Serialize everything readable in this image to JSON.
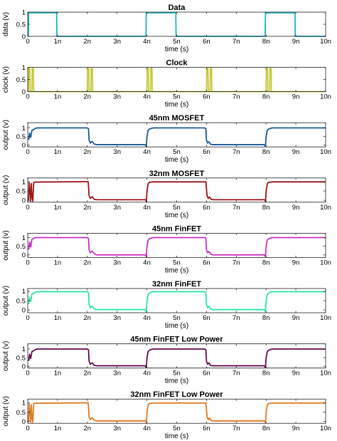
{
  "chart_data": [
    {
      "type": "line",
      "title": "Data",
      "xlabel": "time (s)",
      "ylabel": "data (v)",
      "xlim": [
        0,
        10
      ],
      "ylim": [
        0,
        1
      ],
      "xticks": [
        "0",
        "1n",
        "2n",
        "3n",
        "4n",
        "5n",
        "6n",
        "7n",
        "8n",
        "9n",
        "10n"
      ],
      "yticks": [
        "0",
        "0.5",
        "1"
      ],
      "grid": false,
      "color": "#1fb5c4",
      "series": [
        {
          "x": [
            0,
            0.02,
            0.03,
            0.97,
            0.98,
            3.97,
            3.98,
            4.97,
            4.98,
            7.97,
            7.98,
            8.97,
            8.98,
            10
          ],
          "y": [
            0,
            0,
            0.97,
            0.97,
            0,
            0,
            0.97,
            0.97,
            0,
            0,
            0.97,
            0.97,
            0,
            0
          ]
        }
      ]
    },
    {
      "type": "line",
      "title": "Clock",
      "xlabel": "time (s)",
      "ylabel": "clock (v)",
      "xlim": [
        0,
        10
      ],
      "ylim": [
        0,
        1
      ],
      "xticks": [
        "0",
        "1n",
        "2n",
        "3n",
        "4n",
        "5n",
        "6n",
        "7n",
        "8n",
        "9n",
        "10n"
      ],
      "yticks": [
        "0",
        "0.5",
        "1"
      ],
      "grid": false,
      "color": "#c8c83a",
      "series": [
        {
          "x": [
            0,
            0.02,
            0.03,
            0.07,
            0.08,
            0.14,
            0.15,
            0.19,
            0.2,
            2.0,
            2.01,
            2.05,
            2.06,
            2.12,
            2.13,
            2.17,
            2.18,
            4.0,
            4.01,
            4.05,
            4.06,
            4.12,
            4.13,
            4.17,
            4.18,
            6.0,
            6.01,
            6.05,
            6.06,
            6.12,
            6.13,
            6.17,
            6.18,
            8.0,
            8.01,
            8.05,
            8.06,
            8.12,
            8.13,
            8.17,
            8.18,
            10
          ],
          "y": [
            0,
            0,
            0.97,
            0.97,
            0,
            0,
            0.97,
            0.97,
            0,
            0,
            0.97,
            0.97,
            0,
            0,
            0.97,
            0.97,
            0,
            0,
            0.97,
            0.97,
            0,
            0,
            0.97,
            0.97,
            0,
            0,
            0.97,
            0.97,
            0,
            0,
            0.97,
            0.97,
            0,
            0,
            0.97,
            0.97,
            0,
            0,
            0.97,
            0.97,
            0,
            0
          ]
        }
      ]
    },
    {
      "type": "line",
      "title": "45nm MOSFET",
      "xlabel": "time (s)",
      "ylabel": "output (v)",
      "xlim": [
        0,
        10
      ],
      "ylim": [
        -0.1,
        1.3
      ],
      "xticks": [
        "0",
        "1n",
        "2n",
        "3n",
        "4n",
        "5n",
        "6n",
        "7n",
        "8n",
        "9n",
        "10n"
      ],
      "yticks": [
        "0",
        "0.5",
        "1"
      ],
      "grid": false,
      "color": "#1a5e9c",
      "series": [
        {
          "x": [
            0,
            0.04,
            0.06,
            0.1,
            0.14,
            0.2,
            0.26,
            0.32,
            2.0,
            2.04,
            2.06,
            2.1,
            2.16,
            2.24,
            2.32,
            3.94,
            3.98,
            4.0,
            4.04,
            4.08,
            4.14,
            4.22,
            5.94,
            5.98,
            6.0,
            6.04,
            6.08,
            6.14,
            6.22,
            7.94,
            7.98,
            8.0,
            8.04,
            8.08,
            8.14,
            8.22,
            10
          ],
          "y": [
            0.35,
            0.35,
            0.7,
            0.45,
            0.85,
            0.9,
            0.98,
            1.0,
            1.0,
            0.95,
            0.3,
            0.12,
            0.22,
            0.06,
            0.03,
            0.03,
            -0.07,
            0.45,
            0.85,
            0.92,
            0.97,
            1.0,
            1.0,
            0.95,
            0.3,
            0.12,
            0.2,
            0.05,
            0.03,
            0.03,
            -0.07,
            0.45,
            0.85,
            0.92,
            0.97,
            1.0,
            1.0
          ]
        }
      ]
    },
    {
      "type": "line",
      "title": "32nm MOSFET",
      "xlabel": "time (s)",
      "ylabel": "output (v)",
      "xlim": [
        0,
        10
      ],
      "ylim": [
        -0.1,
        1.2
      ],
      "xticks": [
        "0",
        "1n",
        "2n",
        "3n",
        "4n",
        "5n",
        "6n",
        "7n",
        "8n",
        "9n",
        "10n"
      ],
      "yticks": [
        "0",
        "0.5",
        "1"
      ],
      "grid": false,
      "color": "#a31616",
      "series": [
        {
          "x": [
            0,
            0.03,
            0.05,
            0.08,
            0.1,
            0.12,
            0.14,
            0.17,
            0.2,
            0.26,
            2.0,
            2.03,
            2.06,
            2.1,
            2.16,
            2.24,
            2.34,
            3.96,
            3.98,
            4.01,
            4.05,
            4.1,
            4.2,
            5.96,
            5.98,
            6.02,
            6.06,
            6.1,
            6.16,
            6.24,
            6.34,
            7.96,
            7.98,
            8.01,
            8.05,
            8.1,
            8.2,
            10
          ],
          "y": [
            -0.05,
            0.05,
            0.95,
            0.4,
            -0.05,
            0.9,
            0.25,
            -0.05,
            0.95,
            0.98,
            1.0,
            1.0,
            0.25,
            0.1,
            0.2,
            0.05,
            0.03,
            0.03,
            -0.06,
            0.6,
            0.92,
            0.97,
            0.99,
            0.99,
            1.0,
            0.25,
            0.1,
            0.18,
            0.05,
            0.03,
            0.03,
            0.03,
            -0.06,
            0.6,
            0.92,
            0.97,
            0.99,
            0.99
          ]
        }
      ]
    },
    {
      "type": "line",
      "title": "45nm FinFET",
      "xlabel": "time (s)",
      "ylabel": "output (v)",
      "xlim": [
        0,
        10
      ],
      "ylim": [
        -0.15,
        1.25
      ],
      "xticks": [
        "0",
        "1n",
        "2n",
        "3n",
        "4n",
        "5n",
        "6n",
        "7n",
        "8n",
        "9n",
        "10n"
      ],
      "yticks": [
        "0",
        "0.5",
        "1"
      ],
      "grid": false,
      "color": "#cc33cc",
      "series": [
        {
          "x": [
            0,
            0.04,
            0.06,
            0.1,
            0.14,
            0.2,
            0.26,
            0.32,
            2.0,
            2.04,
            2.06,
            2.1,
            2.16,
            2.24,
            2.32,
            3.94,
            3.98,
            4.0,
            4.04,
            4.08,
            4.14,
            4.22,
            5.94,
            5.98,
            6.0,
            6.04,
            6.08,
            6.14,
            6.22,
            7.94,
            7.98,
            8.0,
            8.04,
            8.08,
            8.14,
            8.22,
            10
          ],
          "y": [
            0.35,
            0.35,
            0.75,
            0.45,
            0.9,
            0.95,
            1.0,
            1.0,
            1.0,
            0.95,
            0.3,
            0.12,
            0.22,
            0.06,
            0.0,
            0.0,
            -0.1,
            0.45,
            0.85,
            0.92,
            0.97,
            1.0,
            1.0,
            0.95,
            0.3,
            0.12,
            0.2,
            0.05,
            0.0,
            0.0,
            -0.1,
            0.45,
            0.85,
            0.92,
            0.97,
            1.0,
            1.0
          ]
        }
      ]
    },
    {
      "type": "line",
      "title": "32nm FinFET",
      "xlabel": "time (s)",
      "ylabel": "output (v)",
      "xlim": [
        0,
        10
      ],
      "ylim": [
        -0.15,
        1.15
      ],
      "xticks": [
        "0",
        "1n",
        "2n",
        "3n",
        "4n",
        "5n",
        "6n",
        "7n",
        "8n",
        "9n",
        "10n"
      ],
      "yticks": [
        "0",
        "0.5",
        "1"
      ],
      "grid": false,
      "color": "#2ee8b0",
      "series": [
        {
          "x": [
            0,
            0.04,
            0.06,
            0.1,
            0.14,
            0.2,
            0.26,
            0.32,
            2.0,
            2.04,
            2.06,
            2.1,
            2.16,
            2.24,
            2.32,
            3.94,
            3.98,
            4.0,
            4.04,
            4.08,
            4.14,
            4.22,
            5.94,
            5.98,
            6.0,
            6.04,
            6.08,
            6.14,
            6.22,
            7.94,
            7.98,
            8.0,
            8.04,
            8.08,
            8.14,
            8.22,
            10
          ],
          "y": [
            0.35,
            0.35,
            0.7,
            0.45,
            0.85,
            0.9,
            0.96,
            0.98,
            0.98,
            0.93,
            0.3,
            0.12,
            0.2,
            0.05,
            0.02,
            0.02,
            -0.1,
            0.45,
            0.82,
            0.9,
            0.95,
            0.98,
            0.98,
            0.93,
            0.3,
            0.12,
            0.2,
            0.05,
            0.02,
            0.02,
            -0.1,
            0.45,
            0.82,
            0.9,
            0.95,
            0.98,
            0.98
          ]
        }
      ]
    },
    {
      "type": "line",
      "title": "45nm FinFET Low Power",
      "xlabel": "time (s)",
      "ylabel": "output (v)",
      "xlim": [
        0,
        10
      ],
      "ylim": [
        -0.1,
        1.3
      ],
      "xticks": [
        "0",
        "1n",
        "2n",
        "3n",
        "4n",
        "5n",
        "6n",
        "7n",
        "8n",
        "9n",
        "10n"
      ],
      "yticks": [
        "0",
        "0.5",
        "1"
      ],
      "grid": false,
      "color": "#6a0f52",
      "series": [
        {
          "x": [
            0,
            0.04,
            0.06,
            0.1,
            0.14,
            0.2,
            0.26,
            0.32,
            2.0,
            2.04,
            2.06,
            2.1,
            2.16,
            2.24,
            2.32,
            3.94,
            3.98,
            4.0,
            4.04,
            4.08,
            4.14,
            4.22,
            5.94,
            5.98,
            6.0,
            6.04,
            6.08,
            6.14,
            6.22,
            7.94,
            7.98,
            8.0,
            8.04,
            8.08,
            8.14,
            8.22,
            10
          ],
          "y": [
            0.35,
            0.35,
            0.7,
            0.45,
            0.85,
            0.9,
            0.97,
            1.0,
            1.0,
            0.95,
            0.3,
            0.12,
            0.2,
            0.05,
            0.03,
            0.03,
            -0.07,
            0.45,
            0.85,
            0.92,
            0.97,
            1.0,
            1.0,
            0.95,
            0.3,
            0.12,
            0.2,
            0.05,
            0.03,
            0.03,
            -0.07,
            0.45,
            0.85,
            0.92,
            0.97,
            1.0,
            1.0
          ]
        }
      ]
    },
    {
      "type": "line",
      "title": "32nm FinFET Low Power",
      "xlabel": "time (s)",
      "ylabel": "output (v)",
      "xlim": [
        0,
        10
      ],
      "ylim": [
        -0.1,
        1.2
      ],
      "xticks": [
        "0",
        "1n",
        "2n",
        "3n",
        "4n",
        "5n",
        "6n",
        "7n",
        "8n",
        "9n",
        "10n"
      ],
      "yticks": [
        "0",
        "0.5",
        "1"
      ],
      "grid": false,
      "color": "#e07b24",
      "series": [
        {
          "x": [
            0,
            0.03,
            0.05,
            0.08,
            0.1,
            0.12,
            0.14,
            0.17,
            0.2,
            0.26,
            2.0,
            2.03,
            2.06,
            2.1,
            2.16,
            2.24,
            2.34,
            3.96,
            3.98,
            4.01,
            4.05,
            4.1,
            4.2,
            5.96,
            5.98,
            6.02,
            6.06,
            6.1,
            6.16,
            6.24,
            6.34,
            7.96,
            7.98,
            8.01,
            8.05,
            8.1,
            8.2,
            10
          ],
          "y": [
            -0.05,
            0.05,
            0.95,
            0.4,
            -0.05,
            0.9,
            0.25,
            -0.05,
            0.95,
            0.98,
            1.0,
            1.0,
            0.25,
            0.1,
            0.2,
            0.05,
            0.03,
            0.03,
            -0.06,
            0.6,
            0.92,
            0.97,
            0.99,
            0.99,
            1.0,
            0.25,
            0.1,
            0.18,
            0.05,
            0.03,
            0.03,
            0.03,
            -0.06,
            0.6,
            0.92,
            0.97,
            0.99,
            0.99
          ]
        }
      ]
    }
  ]
}
